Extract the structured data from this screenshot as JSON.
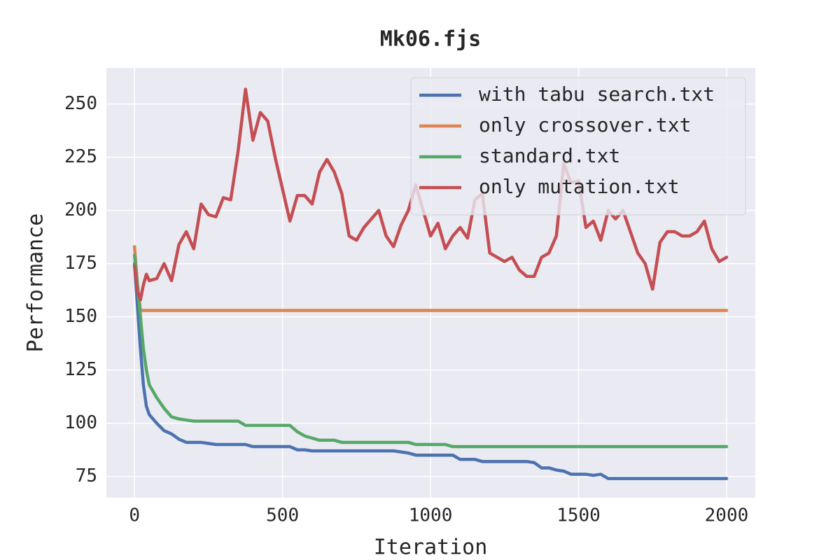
{
  "chart_data": {
    "type": "line",
    "title": "Mk06.fjs",
    "x_label": "Iteration",
    "y_label": "Performance",
    "x": [
      0,
      10,
      20,
      30,
      40,
      50,
      75,
      100,
      125,
      150,
      175,
      200,
      225,
      250,
      275,
      300,
      325,
      350,
      375,
      400,
      425,
      450,
      475,
      500,
      525,
      550,
      575,
      600,
      625,
      650,
      675,
      700,
      725,
      750,
      775,
      800,
      825,
      850,
      875,
      900,
      925,
      950,
      975,
      1000,
      1025,
      1050,
      1075,
      1100,
      1125,
      1150,
      1175,
      1200,
      1225,
      1250,
      1275,
      1300,
      1325,
      1350,
      1375,
      1400,
      1425,
      1450,
      1475,
      1500,
      1525,
      1550,
      1575,
      1600,
      1625,
      1650,
      1675,
      1700,
      1725,
      1750,
      1775,
      1800,
      1825,
      1850,
      1875,
      1900,
      1925,
      1950,
      1975,
      2000
    ],
    "series": [
      {
        "name": "with tabu search.txt",
        "color": "#4c72b0",
        "values": [
          175,
          155,
          135,
          118,
          108,
          104,
          100,
          96.5,
          95,
          92.5,
          91,
          91,
          91,
          90.5,
          90,
          90,
          90,
          90,
          90,
          89,
          89,
          89,
          89,
          89,
          89,
          87.5,
          87.5,
          87,
          87,
          87,
          87,
          87,
          87,
          87,
          87,
          87,
          87,
          87,
          87,
          86.5,
          86,
          85,
          85,
          85,
          85,
          85,
          85,
          83,
          83,
          83,
          82,
          82,
          82,
          82,
          82,
          82,
          82,
          81.5,
          79,
          79,
          78,
          77.5,
          76,
          76,
          76,
          75.5,
          76,
          74,
          74,
          74,
          74,
          74,
          74,
          74,
          74,
          74,
          74,
          74,
          74,
          74,
          74,
          74,
          74,
          74
        ]
      },
      {
        "name": "only crossover.txt",
        "color": "#dd8452",
        "values": [
          183,
          165,
          153,
          153,
          153,
          153,
          153,
          153,
          153,
          153,
          153,
          153,
          153,
          153,
          153,
          153,
          153,
          153,
          153,
          153,
          153,
          153,
          153,
          153,
          153,
          153,
          153,
          153,
          153,
          153,
          153,
          153,
          153,
          153,
          153,
          153,
          153,
          153,
          153,
          153,
          153,
          153,
          153,
          153,
          153,
          153,
          153,
          153,
          153,
          153,
          153,
          153,
          153,
          153,
          153,
          153,
          153,
          153,
          153,
          153,
          153,
          153,
          153,
          153,
          153,
          153,
          153,
          153,
          153,
          153,
          153,
          153,
          153,
          153,
          153,
          153,
          153,
          153,
          153,
          153,
          153,
          153,
          153,
          153
        ]
      },
      {
        "name": "standard.txt",
        "color": "#55a868",
        "values": [
          179,
          165,
          150,
          135,
          125,
          118,
          112,
          107,
          103,
          102,
          101.5,
          101,
          101,
          101,
          101,
          101,
          101,
          101,
          99,
          99,
          99,
          99,
          99,
          99,
          99,
          96,
          94,
          93,
          92,
          92,
          92,
          91,
          91,
          91,
          91,
          91,
          91,
          91,
          91,
          91,
          91,
          90,
          90,
          90,
          90,
          90,
          89,
          89,
          89,
          89,
          89,
          89,
          89,
          89,
          89,
          89,
          89,
          89,
          89,
          89,
          89,
          89,
          89,
          89,
          89,
          89,
          89,
          89,
          89,
          89,
          89,
          89,
          89,
          89,
          89,
          89,
          89,
          89,
          89,
          89,
          89,
          89,
          89,
          89
        ]
      },
      {
        "name": "only mutation.txt",
        "color": "#c44e52",
        "values": [
          174,
          162,
          158,
          165,
          170,
          167,
          168,
          175,
          167,
          184,
          190,
          182,
          203,
          198,
          197,
          206,
          205,
          228,
          257,
          233,
          246,
          242,
          225,
          210,
          195,
          207,
          207,
          203,
          218,
          224,
          218,
          208,
          188,
          186,
          192,
          196,
          200,
          188,
          183,
          193,
          200,
          212,
          200,
          188,
          194,
          182,
          188,
          192,
          187,
          205,
          208,
          180,
          178,
          176,
          178,
          172,
          169,
          169,
          178,
          180,
          188,
          222,
          213,
          214,
          192,
          195,
          186,
          200,
          196,
          200,
          190,
          180,
          175,
          163,
          185,
          190,
          190,
          188,
          188,
          190,
          195,
          182,
          176,
          178
        ]
      }
    ],
    "xlim": [
      -95,
      2097
    ],
    "ylim": [
      65,
      267
    ],
    "xticks": [
      0,
      500,
      1000,
      1500,
      2000
    ],
    "yticks": [
      75,
      100,
      125,
      150,
      175,
      200,
      225,
      250
    ],
    "grid": true,
    "legend": "upper right"
  }
}
